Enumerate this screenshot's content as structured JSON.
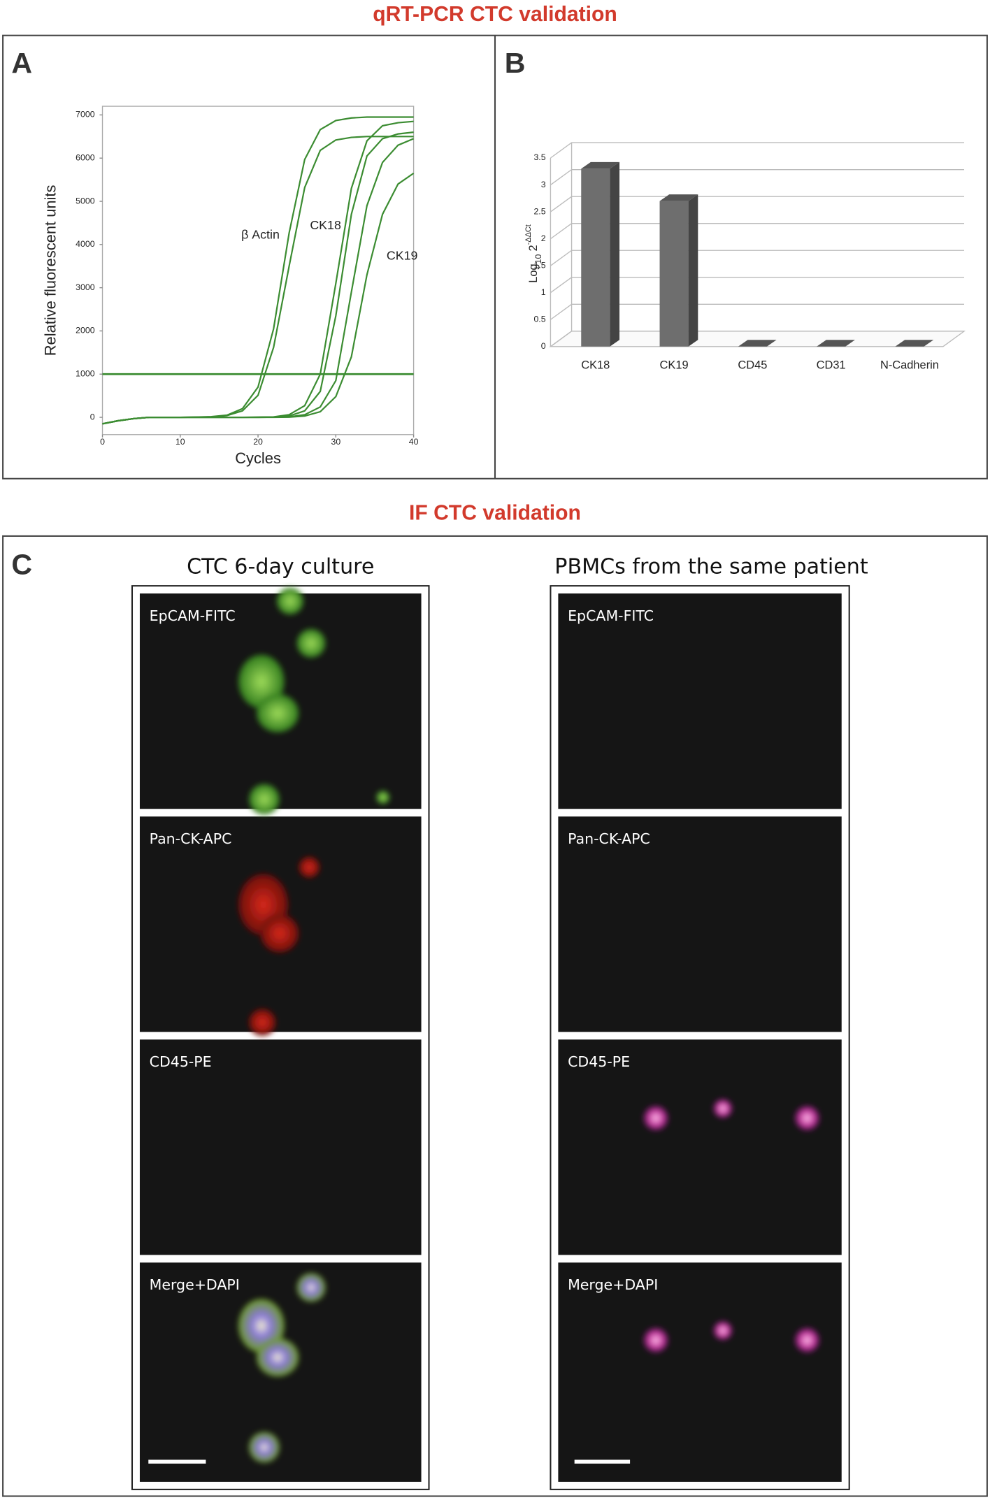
{
  "titles": {
    "qpcr": "qRT-PCR CTC validation",
    "if": "IF CTC validation"
  },
  "panels": [
    "A",
    "B",
    "C"
  ],
  "chart_data": [
    {
      "type": "line",
      "xlabel": "Cycles",
      "ylabel": "Relative fluorescent units",
      "x": [
        0,
        2,
        4,
        6,
        8,
        10,
        12,
        14,
        16,
        18,
        20,
        22,
        24,
        26,
        28,
        30,
        32,
        34,
        36,
        38,
        40
      ],
      "xlim": [
        0,
        40
      ],
      "xticks": [
        0,
        10,
        20,
        30,
        40
      ],
      "ylim": [
        -400,
        7200
      ],
      "yticks": [
        0,
        1000,
        2000,
        3000,
        4000,
        5000,
        6000,
        7000
      ],
      "grid": false,
      "threshold": 1000,
      "annotations": [
        "β Actin",
        "CK18",
        "CK19"
      ],
      "series": [
        {
          "color": "#3b8c31",
          "values": [
            -150,
            -80,
            -30,
            0,
            0,
            0,
            5,
            15,
            50,
            200,
            700,
            2050,
            4270,
            5970,
            6660,
            6870,
            6930,
            6950,
            6950,
            6950,
            6950
          ]
        },
        {
          "color": "#3b8c31",
          "values": [
            -150,
            -80,
            -30,
            0,
            0,
            0,
            5,
            10,
            40,
            150,
            510,
            1620,
            3500,
            5320,
            6180,
            6420,
            6480,
            6500,
            6500,
            6500,
            6500
          ]
        },
        {
          "color": "#3b8c31",
          "values": [
            -150,
            -80,
            -30,
            0,
            0,
            0,
            0,
            0,
            0,
            0,
            5,
            10,
            60,
            270,
            1000,
            3100,
            5300,
            6400,
            6750,
            6820,
            6850
          ]
        },
        {
          "color": "#3b8c31",
          "values": [
            -150,
            -80,
            -30,
            0,
            0,
            0,
            0,
            0,
            0,
            0,
            0,
            5,
            30,
            150,
            600,
            2350,
            4700,
            6050,
            6450,
            6560,
            6600
          ]
        },
        {
          "color": "#3b8c31",
          "values": [
            -150,
            -80,
            -30,
            0,
            0,
            0,
            0,
            0,
            0,
            0,
            0,
            5,
            10,
            60,
            240,
            850,
            2900,
            4900,
            5900,
            6300,
            6450
          ]
        },
        {
          "color": "#3b8c31",
          "values": [
            -150,
            -80,
            -30,
            0,
            0,
            0,
            0,
            0,
            0,
            0,
            0,
            0,
            5,
            30,
            130,
            480,
            1400,
            3300,
            4700,
            5400,
            5650
          ]
        }
      ]
    },
    {
      "type": "bar",
      "ylabel": {
        "log": "Log",
        "base": "10",
        "two": "2",
        "power": "-ΔΔCt"
      },
      "categories": [
        "CK18",
        "CK19",
        "CD45",
        "CD31",
        "N-Cadherin"
      ],
      "values": [
        3.3,
        2.7,
        0,
        0,
        0
      ],
      "color": "#6e6e6e",
      "ylim": [
        0,
        3.5
      ],
      "yticks": [
        0,
        0.5,
        1,
        1.5,
        2,
        2.5,
        3,
        3.5
      ],
      "grid": true
    }
  ],
  "if_panel": {
    "columns": [
      {
        "title": "CTC 6-day culture",
        "images": [
          "EpCAM-FITC",
          "Pan-CK-APC",
          "CD45-PE",
          "Merge+DAPI"
        ]
      },
      {
        "title": "PBMCs from the same patient",
        "images": [
          "EpCAM-FITC",
          "Pan-CK-APC",
          "CD45-PE",
          "Merge+DAPI"
        ]
      }
    ]
  }
}
